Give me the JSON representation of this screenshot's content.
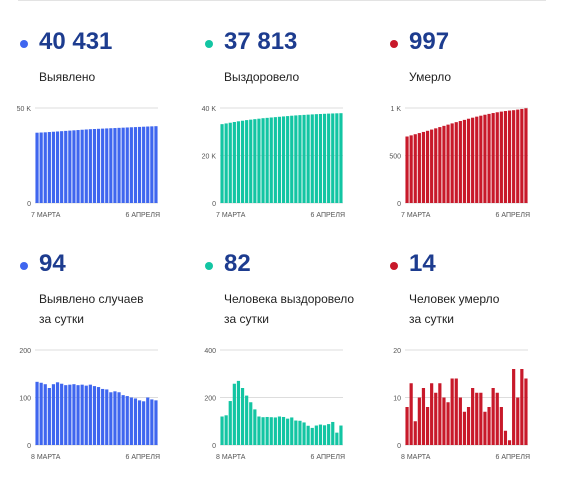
{
  "stats": [
    {
      "value": "40 431",
      "label": [
        "Выявлено"
      ],
      "color": "#3f66ef"
    },
    {
      "value": "37 813",
      "label": [
        "Выздоровело"
      ],
      "color": "#13c5a3"
    },
    {
      "value": "997",
      "label": [
        "Умерло"
      ],
      "color": "#c8192a"
    },
    {
      "value": "94",
      "label": [
        "Выявлено случаев",
        "за сутки"
      ],
      "color": "#3f66ef"
    },
    {
      "value": "82",
      "label": [
        "Человека выздоровело",
        "за сутки"
      ],
      "color": "#13c5a3"
    },
    {
      "value": "14",
      "label": [
        "Человек умерло",
        "за сутки"
      ],
      "color": "#c8192a"
    }
  ],
  "value_color": "#1d3c8f",
  "chart_data": [
    {
      "type": "bar",
      "ylim": [
        0,
        50000
      ],
      "yticks": [
        {
          "v": 0,
          "t": "0"
        },
        {
          "v": 50000,
          "t": "50 K"
        }
      ],
      "xlabels": [
        "7 МАРТА",
        "6 АПРЕЛЯ"
      ],
      "color": "#3f66ef",
      "values": [
        37000,
        37100,
        37200,
        37350,
        37500,
        37650,
        37800,
        37950,
        38100,
        38250,
        38400,
        38550,
        38700,
        38850,
        38950,
        39050,
        39150,
        39250,
        39350,
        39450,
        39550,
        39650,
        39750,
        39850,
        39950,
        40050,
        40150,
        40250,
        40340,
        40431
      ]
    },
    {
      "type": "bar",
      "ylim": [
        0,
        40000
      ],
      "yticks": [
        {
          "v": 0,
          "t": "0"
        },
        {
          "v": 20000,
          "t": "20 K"
        },
        {
          "v": 40000,
          "t": "40 K"
        }
      ],
      "xlabels": [
        "7 МАРТА",
        "6 АПРЕЛЯ"
      ],
      "color": "#13c5a3",
      "values": [
        33200,
        33500,
        33800,
        34100,
        34400,
        34650,
        34900,
        35100,
        35300,
        35500,
        35700,
        35850,
        36000,
        36150,
        36300,
        36450,
        36600,
        36750,
        36880,
        37000,
        37100,
        37200,
        37300,
        37400,
        37480,
        37560,
        37640,
        37700,
        37760,
        37813
      ]
    },
    {
      "type": "bar",
      "ylim": [
        0,
        1000
      ],
      "yticks": [
        {
          "v": 0,
          "t": "0"
        },
        {
          "v": 500,
          "t": "500"
        },
        {
          "v": 1000,
          "t": "1 K"
        }
      ],
      "xlabels": [
        "7 МАРТА",
        "6 АПРЕЛЯ"
      ],
      "color": "#c8192a",
      "values": [
        700,
        712,
        724,
        736,
        748,
        760,
        773,
        786,
        799,
        812,
        825,
        838,
        851,
        863,
        875,
        887,
        898,
        909,
        919,
        929,
        938,
        947,
        955,
        962,
        968,
        973,
        977,
        983,
        990,
        997
      ]
    },
    {
      "type": "bar",
      "ylim": [
        0,
        200
      ],
      "yticks": [
        {
          "v": 0,
          "t": "0"
        },
        {
          "v": 100,
          "t": "100"
        },
        {
          "v": 200,
          "t": "200"
        }
      ],
      "xlabels": [
        "8 МАРТА",
        "6 АПРЕЛЯ"
      ],
      "color": "#3f66ef",
      "values": [
        133,
        131,
        128,
        120,
        128,
        132,
        129,
        126,
        127,
        128,
        126,
        127,
        125,
        127,
        124,
        122,
        118,
        117,
        111,
        113,
        111,
        105,
        103,
        100,
        98,
        94,
        92,
        100,
        96,
        94
      ]
    },
    {
      "type": "bar",
      "ylim": [
        0,
        400
      ],
      "yticks": [
        {
          "v": 0,
          "t": "0"
        },
        {
          "v": 200,
          "t": "200"
        },
        {
          "v": 400,
          "t": "400"
        }
      ],
      "xlabels": [
        "8 МАРТА",
        "6 АПРЕЛЯ"
      ],
      "color": "#13c5a3",
      "values": [
        120,
        125,
        185,
        258,
        270,
        240,
        208,
        180,
        150,
        120,
        117,
        118,
        117,
        116,
        120,
        118,
        111,
        116,
        103,
        102,
        95,
        81,
        72,
        82,
        86,
        83,
        88,
        97,
        52,
        82
      ]
    },
    {
      "type": "bar",
      "ylim": [
        0,
        20
      ],
      "yticks": [
        {
          "v": 0,
          "t": "0"
        },
        {
          "v": 10,
          "t": "10"
        },
        {
          "v": 20,
          "t": "20"
        }
      ],
      "xlabels": [
        "8 МАРТА",
        "6 АПРЕЛЯ"
      ],
      "color": "#c8192a",
      "values": [
        8,
        13,
        5,
        10,
        12,
        8,
        13,
        11,
        13,
        10,
        9,
        14,
        14,
        10,
        7,
        8,
        12,
        11,
        11,
        7,
        8,
        12,
        11,
        8,
        3,
        1,
        16,
        10,
        16,
        14
      ]
    }
  ]
}
